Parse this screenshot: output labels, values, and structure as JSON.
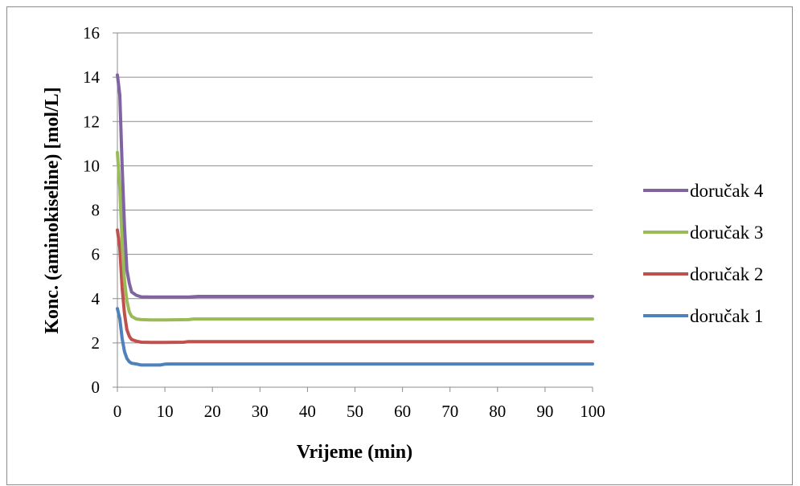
{
  "chart_data": {
    "type": "line",
    "title": "",
    "xlabel": "Vrijeme (min)",
    "ylabel": "Konc. (aminokiseline)  [mol/L]",
    "xlim": [
      0,
      100
    ],
    "ylim": [
      0,
      16
    ],
    "xticks": [
      0,
      10,
      20,
      30,
      40,
      50,
      60,
      70,
      80,
      90,
      100
    ],
    "yticks": [
      0,
      2,
      4,
      6,
      8,
      10,
      12,
      14,
      16
    ],
    "grid": "horizontal",
    "legend_position": "right",
    "series": [
      {
        "name": "doručak 4",
        "color": "#8064a2",
        "x": [
          0,
          0.5,
          1,
          1.5,
          2,
          2.5,
          3,
          4,
          5,
          7,
          10,
          15,
          17,
          20,
          30,
          40,
          50,
          60,
          70,
          80,
          90,
          100
        ],
        "y": [
          14.1,
          13.2,
          10.0,
          7.2,
          5.3,
          4.7,
          4.3,
          4.15,
          4.08,
          4.07,
          4.07,
          4.07,
          4.1,
          4.1,
          4.1,
          4.1,
          4.1,
          4.1,
          4.1,
          4.1,
          4.1,
          4.1
        ]
      },
      {
        "name": "doručak 3",
        "color": "#9bbb59",
        "x": [
          0,
          0.5,
          1,
          1.5,
          2,
          2.5,
          3,
          4,
          5,
          7,
          10,
          15,
          16,
          20,
          30,
          40,
          50,
          60,
          70,
          80,
          90,
          100
        ],
        "y": [
          10.6,
          9.0,
          6.5,
          4.8,
          3.9,
          3.4,
          3.2,
          3.08,
          3.05,
          3.04,
          3.04,
          3.05,
          3.08,
          3.08,
          3.08,
          3.08,
          3.08,
          3.08,
          3.08,
          3.08,
          3.08,
          3.08
        ]
      },
      {
        "name": "doručak 2",
        "color": "#c0504d",
        "x": [
          0,
          0.5,
          1,
          1.5,
          2,
          2.5,
          3,
          4,
          5,
          7,
          10,
          14,
          15,
          20,
          30,
          40,
          50,
          60,
          70,
          80,
          90,
          100
        ],
        "y": [
          7.1,
          6.3,
          4.5,
          3.3,
          2.6,
          2.3,
          2.15,
          2.08,
          2.03,
          2.02,
          2.02,
          2.03,
          2.06,
          2.06,
          2.06,
          2.06,
          2.06,
          2.06,
          2.06,
          2.06,
          2.06,
          2.06
        ]
      },
      {
        "name": "doručak 1",
        "color": "#4f81bd",
        "x": [
          0,
          0.5,
          1,
          1.5,
          2,
          2.5,
          3,
          4,
          5,
          7,
          9,
          10,
          11,
          20,
          30,
          40,
          50,
          60,
          70,
          80,
          90,
          100
        ],
        "y": [
          3.55,
          3.1,
          2.2,
          1.6,
          1.3,
          1.15,
          1.08,
          1.05,
          1.0,
          1.0,
          1.0,
          1.04,
          1.05,
          1.05,
          1.05,
          1.05,
          1.05,
          1.05,
          1.05,
          1.05,
          1.05,
          1.05
        ]
      }
    ]
  }
}
